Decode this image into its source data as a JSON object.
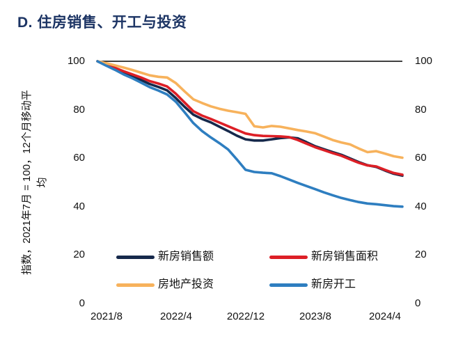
{
  "page": {
    "title": "D. 住房销售、开工与投资"
  },
  "chart_data": {
    "type": "line",
    "title": "D. 住房销售、开工与投资",
    "ylabel": "指数，2021年7月 = 100，12个月移动平均",
    "ylabel_line1": "指数，2021年7月 = 100，12个月移动平",
    "ylabel_line2": "均",
    "x_frequency": "monthly",
    "x_start": "2021/7",
    "x_end": "2024/6",
    "x_month_count": 36,
    "xticks": [
      1,
      9,
      17,
      25,
      33
    ],
    "xticklabels": [
      "2021/8",
      "2022/4",
      "2022/12",
      "2023/8",
      "2024/4"
    ],
    "ytick_labels": [
      "100",
      "80",
      "60",
      "40",
      "20",
      "0"
    ],
    "ylim": [
      0,
      100
    ],
    "reference_line": 100,
    "grid": false,
    "legend_position": "bottom",
    "axis_color": "#000000",
    "series": [
      {
        "key": "sales-value",
        "name": "新房销售额",
        "color": "#16294b",
        "values": [
          100,
          98.5,
          96.9,
          95.2,
          93.8,
          92.3,
          90.6,
          89.4,
          88.0,
          84.8,
          81.2,
          78.0,
          76.2,
          74.8,
          73.0,
          71.2,
          69.3,
          67.8,
          67.3,
          67.3,
          67.8,
          68.3,
          68.6,
          68.2,
          66.6,
          64.9,
          63.7,
          62.5,
          61.4,
          59.9,
          58.4,
          57.1,
          56.4,
          54.9,
          53.6,
          52.8
        ]
      },
      {
        "key": "sales-area",
        "name": "新房销售面积",
        "color": "#dd1f26",
        "values": [
          100,
          98.8,
          97.3,
          95.9,
          94.6,
          93.3,
          91.8,
          90.8,
          89.6,
          86.6,
          83.0,
          79.4,
          77.6,
          76.2,
          74.7,
          73.2,
          71.7,
          70.2,
          69.5,
          69.2,
          69.1,
          69.0,
          68.7,
          67.5,
          66.0,
          64.5,
          63.3,
          62.1,
          61.0,
          59.5,
          58.1,
          57.0,
          56.6,
          55.2,
          53.9,
          53.2
        ]
      },
      {
        "key": "investment",
        "name": "房地产投资",
        "color": "#f7b25c",
        "values": [
          100,
          99.2,
          98.3,
          97.4,
          96.4,
          95.3,
          94.2,
          93.6,
          93.3,
          91.0,
          87.6,
          84.3,
          82.8,
          81.4,
          80.4,
          79.6,
          79.0,
          78.3,
          73.2,
          72.7,
          73.3,
          73.0,
          72.3,
          71.6,
          71.0,
          70.3,
          68.9,
          67.5,
          66.5,
          65.7,
          64.0,
          62.5,
          62.9,
          61.9,
          60.8,
          60.2
        ]
      },
      {
        "key": "starts",
        "name": "新房开工",
        "color": "#2e7ec0",
        "values": [
          100,
          98.2,
          96.5,
          94.6,
          93.0,
          91.2,
          89.3,
          87.9,
          86.3,
          83.3,
          79.0,
          74.5,
          71.2,
          68.6,
          66.2,
          63.6,
          59.5,
          55.2,
          54.3,
          54.0,
          53.8,
          52.6,
          51.2,
          49.8,
          48.5,
          47.2,
          45.9,
          44.7,
          43.6,
          42.7,
          41.9,
          41.3,
          41.0,
          40.6,
          40.2,
          40.0
        ]
      }
    ]
  }
}
